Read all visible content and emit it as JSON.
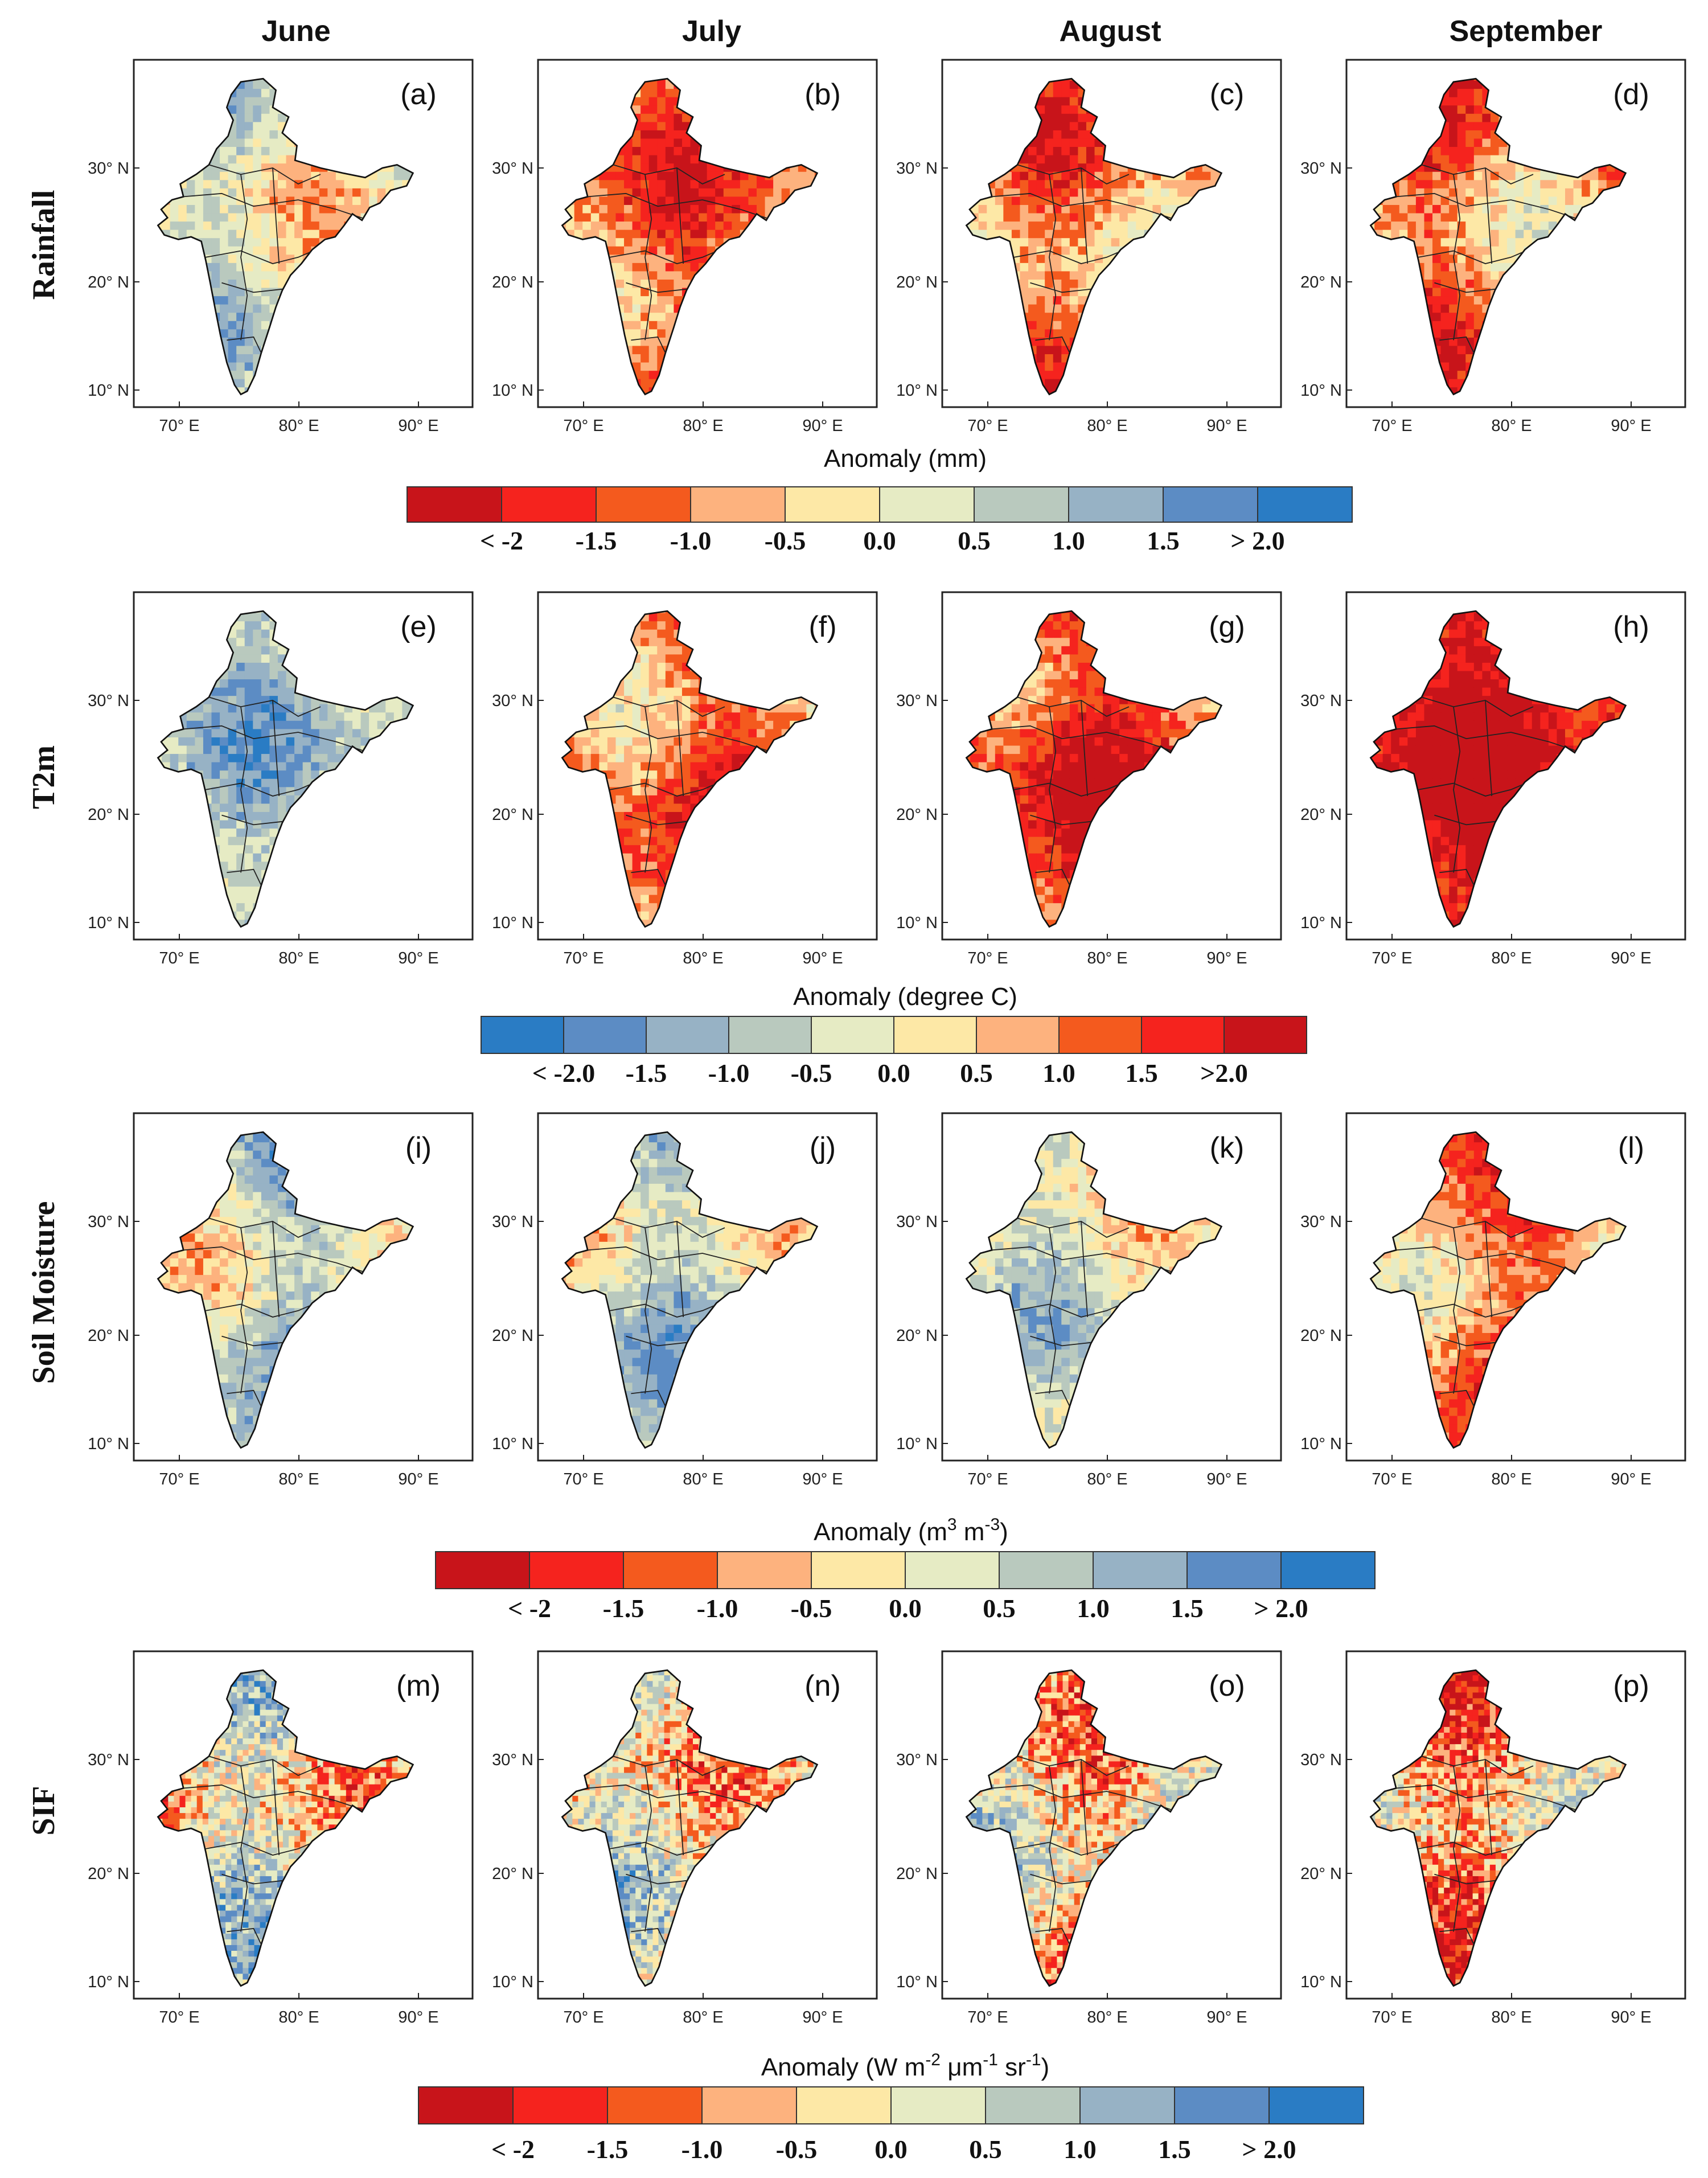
{
  "columns": [
    {
      "title": "June"
    },
    {
      "title": "July"
    },
    {
      "title": "August"
    },
    {
      "title": "September"
    }
  ],
  "rows": [
    {
      "label": "Rainfall",
      "panels": [
        {
          "label": "(a)",
          "tone": 0.25
        },
        {
          "label": "(b)",
          "tone": -0.85
        },
        {
          "label": "(c)",
          "tone": -0.7
        },
        {
          "label": "(d)",
          "tone": -0.9
        }
      ],
      "colorbar": {
        "title": "Anomaly (mm)",
        "colors": [
          "#c8141a",
          "#f5231e",
          "#f45a1e",
          "#fdb27e",
          "#fde8a6",
          "#e6ebc4",
          "#b9c9be",
          "#97b2c5",
          "#5c8cc4",
          "#2a7cc4"
        ],
        "ticks": [
          "< -2",
          "-1.5",
          "-1.0",
          "-0.5",
          "0.0",
          "0.5",
          "1.0",
          "1.5",
          "> 2.0"
        ]
      }
    },
    {
      "label": "T2m",
      "panels": [
        {
          "label": "(e)",
          "tone": -0.5
        },
        {
          "label": "(f)",
          "tone": 1.1
        },
        {
          "label": "(g)",
          "tone": 1.3
        },
        {
          "label": "(h)",
          "tone": 1.6
        }
      ],
      "colorbar": {
        "title": "Anomaly (degree C)",
        "colors": [
          "#2a7cc4",
          "#5c8cc4",
          "#97b2c5",
          "#b9c9be",
          "#e6ebc4",
          "#fde8a6",
          "#fdb27e",
          "#f45a1e",
          "#f5231e",
          "#c8141a"
        ],
        "ticks": [
          "< -2.0",
          "-1.5",
          "-1.0",
          "-0.5",
          "0.0",
          "0.5",
          "1.0",
          "1.5",
          ">2.0"
        ]
      }
    },
    {
      "label": "Soil Moisture",
      "panels": [
        {
          "label": "(i)",
          "tone": 0.5
        },
        {
          "label": "(j)",
          "tone": 0.35
        },
        {
          "label": "(k)",
          "tone": 0.1
        },
        {
          "label": "(l)",
          "tone": -0.9
        }
      ],
      "colorbar": {
        "title_main": "Anomaly (m",
        "title_sup1": "3",
        "title_mid": " m",
        "title_sup2": "-3",
        "title_end": ")",
        "colors": [
          "#c8141a",
          "#f5231e",
          "#f45a1e",
          "#fdb27e",
          "#fde8a6",
          "#e6ebc4",
          "#b9c9be",
          "#97b2c5",
          "#5c8cc4",
          "#2a7cc4"
        ],
        "ticks": [
          "< -2",
          "-1.5",
          "-1.0",
          "-0.5",
          "0.0",
          "0.5",
          "1.0",
          "1.5",
          "> 2.0"
        ]
      }
    },
    {
      "label": "SIF",
      "panels": [
        {
          "label": "(m)",
          "tone": 0.05
        },
        {
          "label": "(n)",
          "tone": -0.05
        },
        {
          "label": "(o)",
          "tone": -0.2
        },
        {
          "label": "(p)",
          "tone": -0.6
        }
      ],
      "colorbar": {
        "title_main": "Anomaly (W m",
        "title_sup1": "-2",
        "title_mid": " μm",
        "title_sup2": "-1",
        "title_mid2": " sr",
        "title_sup3": "-1",
        "title_end": ")",
        "colors": [
          "#c8141a",
          "#f5231e",
          "#f45a1e",
          "#fdb27e",
          "#fde8a6",
          "#e6ebc4",
          "#b9c9be",
          "#97b2c5",
          "#5c8cc4",
          "#2a7cc4"
        ],
        "ticks": [
          "< -2",
          "-1.5",
          "-1.0",
          "-0.5",
          "0.0",
          "0.5",
          "1.0",
          "1.5",
          "> 2.0"
        ]
      }
    }
  ],
  "axes": {
    "lat_ticks": [
      "30° N",
      "20° N",
      "10° N"
    ],
    "lon_ticks": [
      "70° E",
      "80° E",
      "90° E"
    ]
  }
}
